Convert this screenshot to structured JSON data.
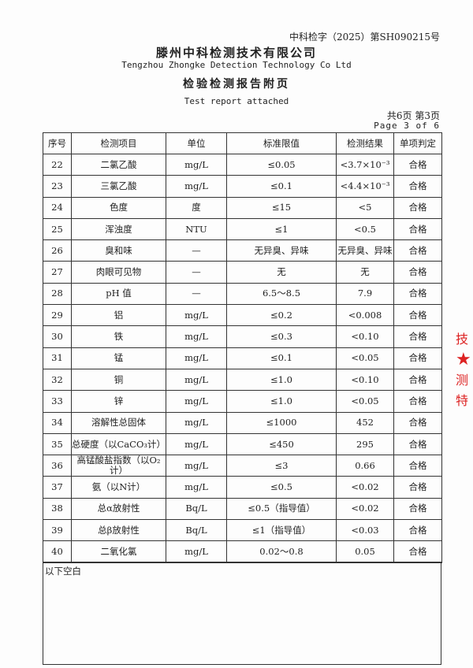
{
  "header": {
    "doc_number": "中科检字（2025）第SH090215号",
    "company": "滕州中科检测技术有限公司",
    "company_en": "Tengzhou Zhongke Detection Technology Co Ltd",
    "title": "检验检测报告附页",
    "title_en": "Test report attached",
    "pages_cn": "共6页 第3页",
    "pages_en": "Page 3 of 6"
  },
  "table": {
    "columns": [
      "序号",
      "检测项目",
      "单位",
      "标准限值",
      "检测结果",
      "单项判定"
    ],
    "rows": [
      [
        "22",
        "二氯乙酸",
        "mg/L",
        "≤0.05",
        "<3.7×10⁻³",
        "合格"
      ],
      [
        "23",
        "三氯乙酸",
        "mg/L",
        "≤0.1",
        "<4.4×10⁻³",
        "合格"
      ],
      [
        "24",
        "色度",
        "度",
        "≤15",
        "<5",
        "合格"
      ],
      [
        "25",
        "浑浊度",
        "NTU",
        "≤1",
        "<0.5",
        "合格"
      ],
      [
        "26",
        "臭和味",
        "—",
        "无异臭、异味",
        "无异臭、异味",
        "合格"
      ],
      [
        "27",
        "肉眼可见物",
        "—",
        "无",
        "无",
        "合格"
      ],
      [
        "28",
        "pH 值",
        "—",
        "6.5～8.5",
        "7.9",
        "合格"
      ],
      [
        "29",
        "铝",
        "mg/L",
        "≤0.2",
        "<0.008",
        "合格"
      ],
      [
        "30",
        "铁",
        "mg/L",
        "≤0.3",
        "<0.10",
        "合格"
      ],
      [
        "31",
        "锰",
        "mg/L",
        "≤0.1",
        "<0.05",
        "合格"
      ],
      [
        "32",
        "铜",
        "mg/L",
        "≤1.0",
        "<0.10",
        "合格"
      ],
      [
        "33",
        "锌",
        "mg/L",
        "≤1.0",
        "<0.05",
        "合格"
      ],
      [
        "34",
        "溶解性总固体",
        "mg/L",
        "≤1000",
        "452",
        "合格"
      ],
      [
        "35",
        "总硬度（以CaCO₃计）",
        "mg/L",
        "≤450",
        "295",
        "合格"
      ],
      [
        "36",
        "高锰酸盐指数（以O₂计）",
        "mg/L",
        "≤3",
        "0.66",
        "合格"
      ],
      [
        "37",
        "氨（以N计）",
        "mg/L",
        "≤0.5",
        "<0.02",
        "合格"
      ],
      [
        "38",
        "总α放射性",
        "Bq/L",
        "≤0.5（指导值）",
        "<0.02",
        "合格"
      ],
      [
        "39",
        "总β放射性",
        "Bq/L",
        "≤1（指导值）",
        "<0.03",
        "合格"
      ],
      [
        "40",
        "二氧化氯",
        "mg/L",
        "0.02～0.8",
        "0.05",
        "合格"
      ]
    ],
    "remark": "以下空白"
  },
  "stamp": {
    "text": "技 ★ 测特",
    "color": "#d22222"
  }
}
